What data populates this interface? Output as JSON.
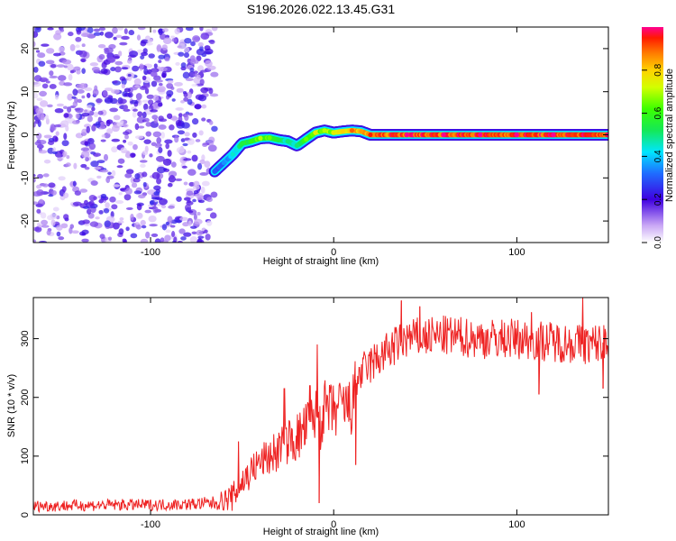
{
  "figure_title": "S196.2026.022.13.45.G31",
  "chart_data": [
    {
      "type": "heatmap",
      "xlabel": "Height of straight line (km)",
      "ylabel": "Frequency (Hz)",
      "xlim": [
        -164,
        150
      ],
      "ylim": [
        -25,
        25
      ],
      "x_ticks": [
        -100,
        0,
        100
      ],
      "y_ticks": [
        -20,
        -10,
        0,
        10,
        20
      ],
      "colorbar": {
        "label": "Normalized spectral amplitude",
        "range": [
          0,
          1
        ],
        "ticks": [
          0.0,
          0.2,
          0.4,
          0.6,
          0.8
        ]
      },
      "noise_region": {
        "x_start": -164,
        "x_end": -65,
        "typical_amplitude": 0.1
      },
      "ridge": {
        "x": [
          -65,
          -60,
          -55,
          -50,
          -45,
          -40,
          -35,
          -30,
          -25,
          -20,
          -15,
          -10,
          -5,
          0,
          5,
          10,
          15,
          20,
          40,
          60,
          80,
          100,
          120,
          150
        ],
        "frequency": [
          -8.5,
          -6.5,
          -4.5,
          -2,
          -1.5,
          -0.8,
          -0.7,
          -1.2,
          -1.5,
          -2.5,
          -1,
          0.5,
          1,
          0.5,
          0.8,
          1,
          0.8,
          0,
          0,
          0,
          0,
          0,
          0,
          0
        ],
        "amplitude": [
          0.3,
          0.35,
          0.45,
          0.55,
          0.6,
          0.7,
          0.65,
          0.55,
          0.5,
          0.5,
          0.65,
          0.75,
          0.7,
          0.75,
          0.8,
          0.9,
          0.85,
          0.95,
          1.0,
          1.0,
          1.0,
          1.0,
          1.0,
          1.0
        ]
      }
    },
    {
      "type": "line",
      "xlabel": "Height of straight line (km)",
      "ylabel": "SNR (10 * v/v)",
      "xlim": [
        -164,
        150
      ],
      "ylim": [
        0,
        370
      ],
      "x_ticks": [
        -100,
        0,
        100
      ],
      "y_ticks": [
        0,
        100,
        200,
        300
      ],
      "series": [
        {
          "name": "SNR",
          "color": "#ee2222",
          "x": [
            -164,
            -140,
            -120,
            -100,
            -80,
            -65,
            -55,
            -50,
            -45,
            -40,
            -35,
            -30,
            -25,
            -20,
            -15,
            -10,
            -8,
            -5,
            0,
            5,
            10,
            12,
            15,
            20,
            30,
            40,
            60,
            80,
            100,
            120,
            140,
            150
          ],
          "mean": [
            15,
            16,
            17,
            17,
            18,
            20,
            30,
            55,
            75,
            90,
            100,
            110,
            125,
            130,
            150,
            170,
            160,
            180,
            175,
            185,
            180,
            230,
            240,
            255,
            280,
            300,
            305,
            300,
            300,
            295,
            290,
            295
          ],
          "spread": [
            10,
            10,
            10,
            10,
            10,
            12,
            25,
            30,
            30,
            30,
            35,
            40,
            40,
            45,
            45,
            45,
            60,
            50,
            50,
            50,
            50,
            40,
            35,
            35,
            35,
            35,
            35,
            35,
            35,
            35,
            35,
            35
          ],
          "spikes": [
            {
              "x": -52,
              "y": 125
            },
            {
              "x": -27,
              "y": 215
            },
            {
              "x": -13,
              "y": 220
            },
            {
              "x": -9,
              "y": 290
            },
            {
              "x": -8,
              "y": 20
            },
            {
              "x": 12,
              "y": 85
            },
            {
              "x": 37,
              "y": 365
            },
            {
              "x": 47,
              "y": 355
            },
            {
              "x": 108,
              "y": 345
            },
            {
              "x": 112,
              "y": 205
            },
            {
              "x": 136,
              "y": 370
            },
            {
              "x": 147,
              "y": 215
            }
          ]
        }
      ]
    }
  ]
}
